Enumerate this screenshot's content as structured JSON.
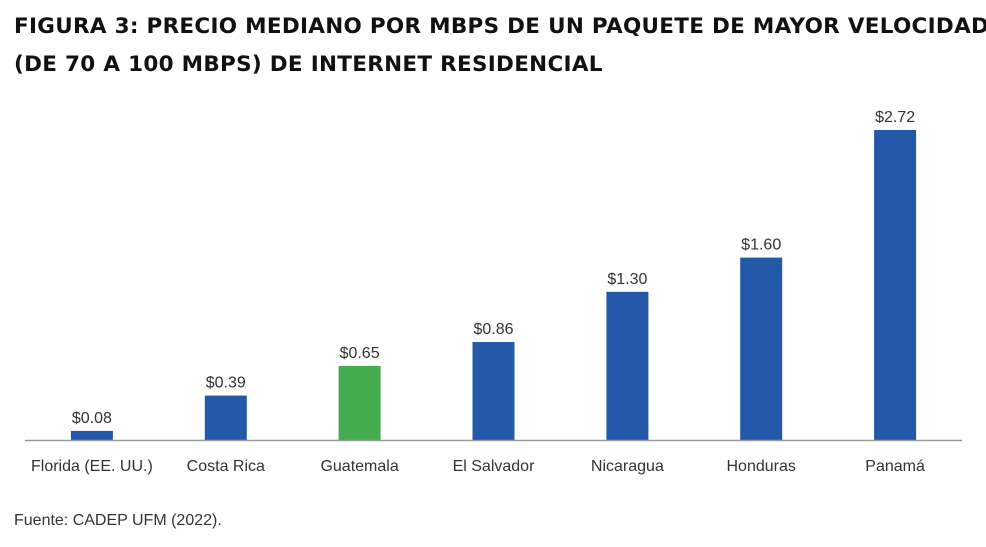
{
  "chart_data": {
    "type": "bar",
    "title_lines": [
      "FIGURA 3: PRECIO MEDIANO POR MBPS DE UN PAQUETE DE MAYOR VELOCIDAD",
      "(DE 70 A 100 MBPS) DE INTERNET RESIDENCIAL"
    ],
    "categories": [
      "Florida (EE. UU.)",
      "Costa Rica",
      "Guatemala",
      "El Salvador",
      "Nicaragua",
      "Honduras",
      "Panamá"
    ],
    "values": [
      0.08,
      0.39,
      0.65,
      0.86,
      1.3,
      1.6,
      2.72
    ],
    "value_labels": [
      "$0.08",
      "$0.39",
      "$0.65",
      "$0.86",
      "$1.30",
      "$1.60",
      "$2.72"
    ],
    "highlight_category": "Guatemala",
    "ylim": [
      0,
      2.72
    ],
    "grid": false,
    "xlabel": "",
    "ylabel": ""
  },
  "colors": {
    "bar": "#2458a8",
    "highlight": "#44ab4e",
    "axis": "#999999"
  },
  "source": "Fuente: CADEP UFM (2022)."
}
